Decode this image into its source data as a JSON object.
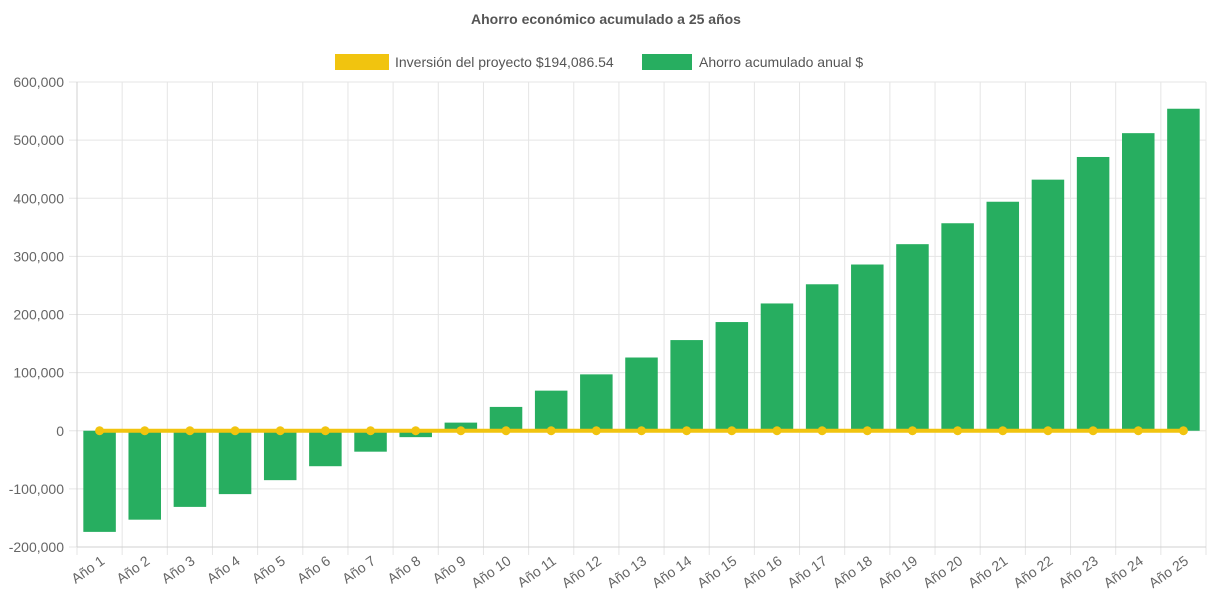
{
  "chart_data": {
    "type": "bar",
    "title": "Ahorro económico acumulado a 25 años",
    "xlabel": "",
    "ylabel": "",
    "ylim": [
      -200000,
      600000
    ],
    "yticks": [
      600000,
      500000,
      400000,
      300000,
      200000,
      100000,
      0,
      -100000,
      -200000
    ],
    "ytick_labels": [
      "600,000",
      "500,000",
      "400,000",
      "300,000",
      "200,000",
      "100,000",
      "0",
      "-100,000",
      "-200,000"
    ],
    "grid": true,
    "legend_position": "top-center",
    "categories": [
      "Año 1",
      "Año 2",
      "Año 3",
      "Año 4",
      "Año 5",
      "Año 6",
      "Año 7",
      "Año 8",
      "Año 9",
      "Año 10",
      "Año 11",
      "Año 12",
      "Año 13",
      "Año 14",
      "Año 15",
      "Año 16",
      "Año 17",
      "Año 18",
      "Año 19",
      "Año 20",
      "Año 21",
      "Año 22",
      "Año 23",
      "Año 24",
      "Año 25"
    ],
    "series": [
      {
        "name": "Inversión del proyecto $194,086.54",
        "type": "line",
        "color": "#f1c40f",
        "values": [
          0,
          0,
          0,
          0,
          0,
          0,
          0,
          0,
          0,
          0,
          0,
          0,
          0,
          0,
          0,
          0,
          0,
          0,
          0,
          0,
          0,
          0,
          0,
          0,
          0
        ]
      },
      {
        "name": "Ahorro acumulado anual $",
        "type": "bar",
        "color": "#27ae60",
        "values": [
          -174000,
          -153000,
          -131000,
          -109000,
          -85000,
          -61000,
          -36000,
          -11000,
          14000,
          41000,
          69000,
          97000,
          126000,
          156000,
          187000,
          219000,
          252000,
          286000,
          321000,
          357000,
          394000,
          432000,
          471000,
          512000,
          554000
        ]
      }
    ]
  }
}
